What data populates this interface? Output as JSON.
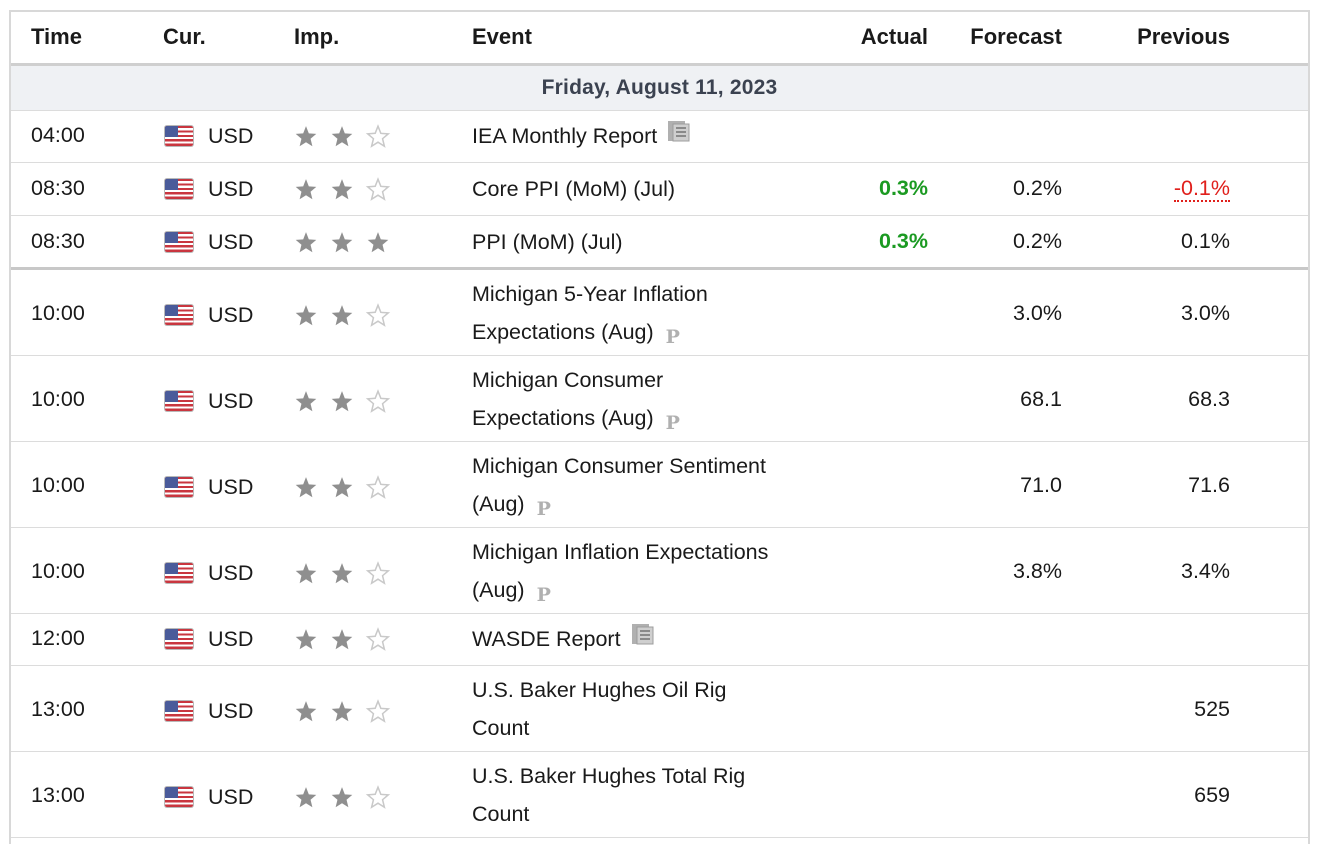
{
  "columns": {
    "time": "Time",
    "currency": "Cur.",
    "importance": "Imp.",
    "event": "Event",
    "actual": "Actual",
    "forecast": "Forecast",
    "previous": "Previous"
  },
  "date_header": "Friday, August 11, 2023",
  "colors": {
    "actual_better": "#1b9a22",
    "previous_worse": "#e0201c",
    "star_filled": "#8f8f8f",
    "star_empty": "#c9c9c9"
  },
  "events": [
    {
      "time": "04:00",
      "currency": "USD",
      "importance": 2,
      "event": "IEA Monthly Report",
      "event_icon": "document-icon",
      "actual": "",
      "forecast": "",
      "previous": ""
    },
    {
      "time": "08:30",
      "currency": "USD",
      "importance": 2,
      "event": "Core PPI (MoM) (Jul)",
      "actual": "0.3%",
      "forecast": "0.2%",
      "previous": "-0.1%",
      "previous_status": "worse"
    },
    {
      "time": "08:30",
      "currency": "USD",
      "importance": 3,
      "event": "PPI (MoM) (Jul)",
      "actual": "0.3%",
      "forecast": "0.2%",
      "previous": "0.1%"
    },
    {
      "time": "10:00",
      "currency": "USD",
      "importance": 2,
      "event_line1": "Michigan 5-Year Inflation",
      "event_line2": "Expectations (Aug)",
      "event_icon": "preliminary-icon",
      "prelim_label": "P",
      "actual": "",
      "forecast": "3.0%",
      "previous": "3.0%"
    },
    {
      "time": "10:00",
      "currency": "USD",
      "importance": 2,
      "event_line1": "Michigan Consumer",
      "event_line2": "Expectations (Aug)",
      "event_icon": "preliminary-icon",
      "prelim_label": "P",
      "actual": "",
      "forecast": "68.1",
      "previous": "68.3"
    },
    {
      "time": "10:00",
      "currency": "USD",
      "importance": 2,
      "event_line1": "Michigan Consumer Sentiment",
      "event_line2": "(Aug)",
      "event_icon": "preliminary-icon",
      "prelim_label": "P",
      "actual": "",
      "forecast": "71.0",
      "previous": "71.6"
    },
    {
      "time": "10:00",
      "currency": "USD",
      "importance": 2,
      "event_line1": "Michigan Inflation Expectations",
      "event_line2": "(Aug)",
      "event_icon": "preliminary-icon",
      "prelim_label": "P",
      "actual": "",
      "forecast": "3.8%",
      "previous": "3.4%"
    },
    {
      "time": "12:00",
      "currency": "USD",
      "importance": 2,
      "event": "WASDE Report",
      "event_icon": "document-icon",
      "actual": "",
      "forecast": "",
      "previous": ""
    },
    {
      "time": "13:00",
      "currency": "USD",
      "importance": 2,
      "event_line1": "U.S. Baker Hughes Oil Rig",
      "event_line2": "Count",
      "actual": "",
      "forecast": "",
      "previous": "525"
    },
    {
      "time": "13:00",
      "currency": "USD",
      "importance": 2,
      "event_line1": "U.S. Baker Hughes Total Rig",
      "event_line2": "Count",
      "actual": "",
      "forecast": "",
      "previous": "659"
    }
  ]
}
